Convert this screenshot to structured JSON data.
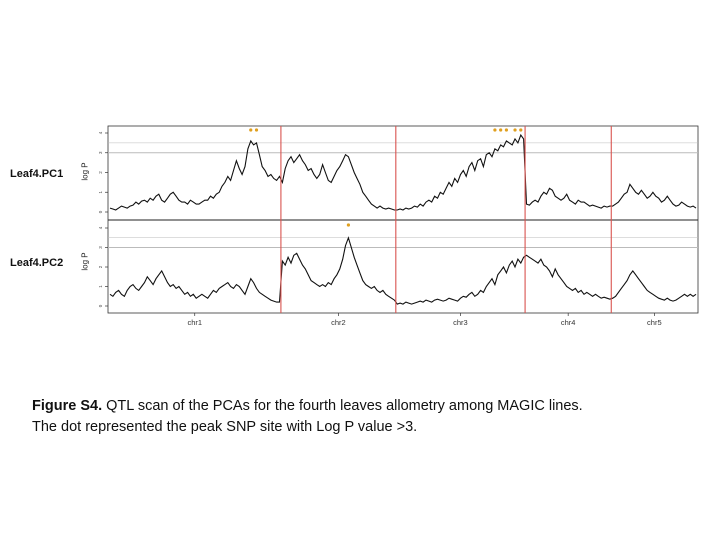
{
  "chart_data": {
    "type": "line",
    "panels": [
      {
        "label": "Leaf4.PC1",
        "ylabel": "log P",
        "yticks": [
          "0",
          "1",
          "2",
          "3",
          "4"
        ],
        "ylim": [
          0,
          4
        ],
        "threshold": 3,
        "peaks_marked": true
      },
      {
        "label": "Leaf4.PC2",
        "ylabel": "log P",
        "yticks": [
          "0",
          "1",
          "2",
          "3",
          "4"
        ],
        "ylim": [
          0,
          4
        ],
        "threshold": 3,
        "peaks_marked": true
      }
    ],
    "chromosomes": [
      "chr1",
      "chr2",
      "chr3",
      "chr4",
      "chr5"
    ],
    "series": [
      {
        "values": [
          0.2,
          0.15,
          0.1,
          0.2,
          0.3,
          0.25,
          0.2,
          0.3,
          0.35,
          0.5,
          0.4,
          0.55,
          0.6,
          0.5,
          0.7,
          0.6,
          0.8,
          0.9,
          0.6,
          0.5,
          0.7,
          0.9,
          1.0,
          0.8,
          0.6,
          0.5,
          0.5,
          0.4,
          0.6,
          0.5,
          0.4,
          0.4,
          0.5,
          0.6,
          0.6,
          0.8,
          0.7,
          0.9,
          1.0,
          1.3,
          1.5,
          1.8,
          1.6,
          2.1,
          2.6,
          2.2,
          1.9,
          2.3,
          3.2,
          3.6,
          3.4,
          3.5,
          2.9,
          2.3,
          2.1,
          1.8,
          1.9,
          1.7,
          1.6,
          1.8,
          1.5,
          2.2,
          2.6,
          2.8,
          2.5,
          2.7,
          2.9,
          2.6,
          2.4,
          2.1,
          2.2,
          1.9,
          1.7,
          1.9,
          2.4,
          2.0,
          1.6,
          1.5,
          1.8,
          2.1,
          2.3,
          2.6,
          2.9,
          2.8,
          2.4,
          2.0,
          1.7,
          1.4,
          1.0,
          0.8,
          0.6,
          0.4,
          0.3,
          0.2,
          0.3,
          0.2,
          0.15,
          0.2,
          0.15,
          0.1,
          0.1,
          0.15,
          0.1,
          0.2,
          0.15,
          0.2,
          0.3,
          0.25,
          0.4,
          0.3,
          0.5,
          0.6,
          0.5,
          0.8,
          0.7,
          1.0,
          0.9,
          1.2,
          1.5,
          1.3,
          1.7,
          1.5,
          1.9,
          2.1,
          1.8,
          2.3,
          2.5,
          2.1,
          2.6,
          2.7,
          2.3,
          2.9,
          3.0,
          2.8,
          3.2,
          3.1,
          3.4,
          3.3,
          3.6,
          3.5,
          3.4,
          3.7,
          3.5,
          3.9,
          3.7,
          0.4,
          0.35,
          0.5,
          0.6,
          0.5,
          0.8,
          1.0,
          0.9,
          1.2,
          1.1,
          0.8,
          0.7,
          0.6,
          0.7,
          0.9,
          0.6,
          0.5,
          0.4,
          0.6,
          0.5,
          0.5,
          0.4,
          0.3,
          0.35,
          0.3,
          0.25,
          0.2,
          0.3,
          0.25,
          0.3,
          0.3,
          0.4,
          0.5,
          0.7,
          0.9,
          1.0,
          1.4,
          1.2,
          1.0,
          0.9,
          1.1,
          0.9,
          0.7,
          0.8,
          1.0,
          0.8,
          0.7,
          0.5,
          0.6,
          0.8,
          0.6,
          0.4,
          0.3,
          0.35,
          0.5,
          0.4,
          0.3,
          0.25,
          0.3,
          0.2
        ]
      },
      {
        "values": [
          0.6,
          0.5,
          0.7,
          0.8,
          0.6,
          0.5,
          0.8,
          1.0,
          1.1,
          0.9,
          0.8,
          1.0,
          1.2,
          1.5,
          1.3,
          1.1,
          1.4,
          1.6,
          1.8,
          1.5,
          1.2,
          1.0,
          1.1,
          0.9,
          1.0,
          0.8,
          0.6,
          0.7,
          0.5,
          0.6,
          0.4,
          0.5,
          0.6,
          0.5,
          0.4,
          0.6,
          0.8,
          0.7,
          0.9,
          1.0,
          1.1,
          1.2,
          1.0,
          0.9,
          1.1,
          1.0,
          0.8,
          0.6,
          1.0,
          1.4,
          1.2,
          0.9,
          0.7,
          0.6,
          0.5,
          0.4,
          0.3,
          0.25,
          0.2,
          0.2,
          2.3,
          2.1,
          2.5,
          2.2,
          2.6,
          2.7,
          2.4,
          2.1,
          1.9,
          1.6,
          1.3,
          1.2,
          1.1,
          1.0,
          1.1,
          1.0,
          1.2,
          1.1,
          1.4,
          1.6,
          1.9,
          2.4,
          3.1,
          3.5,
          3.0,
          2.5,
          2.1,
          1.7,
          1.3,
          1.1,
          1.0,
          0.9,
          1.0,
          0.8,
          0.7,
          0.8,
          0.6,
          0.5,
          0.4,
          0.3,
          0.1,
          0.15,
          0.1,
          0.2,
          0.15,
          0.1,
          0.15,
          0.2,
          0.25,
          0.2,
          0.3,
          0.25,
          0.2,
          0.3,
          0.35,
          0.3,
          0.25,
          0.3,
          0.4,
          0.35,
          0.3,
          0.25,
          0.4,
          0.5,
          0.45,
          0.6,
          0.7,
          0.5,
          0.6,
          0.8,
          0.7,
          1.0,
          1.2,
          1.4,
          1.1,
          1.6,
          1.8,
          2.0,
          1.7,
          2.1,
          2.3,
          2.0,
          2.4,
          2.2,
          2.5,
          2.6,
          2.5,
          2.4,
          2.3,
          2.2,
          2.4,
          2.1,
          2.0,
          1.8,
          1.5,
          1.9,
          1.6,
          1.4,
          1.2,
          1.0,
          0.9,
          0.8,
          0.9,
          0.7,
          0.8,
          0.6,
          0.7,
          0.6,
          0.5,
          0.6,
          0.5,
          0.4,
          0.45,
          0.4,
          0.35,
          0.4,
          0.5,
          0.7,
          0.9,
          1.1,
          1.3,
          1.6,
          1.8,
          1.6,
          1.4,
          1.2,
          1.0,
          0.8,
          0.7,
          0.6,
          0.5,
          0.4,
          0.35,
          0.3,
          0.4,
          0.3,
          0.25,
          0.3,
          0.4,
          0.5,
          0.6,
          0.5,
          0.6,
          0.5,
          0.6
        ]
      }
    ],
    "points_per_chr": [
      60,
      40,
      45,
      30,
      30
    ],
    "colors": {
      "line": "#111111",
      "chr_sep": "#d9534f",
      "threshold": "#bbbbbb",
      "peak_dot": "#e0a020"
    }
  },
  "caption": {
    "bold": "Figure S4.",
    "line1": " QTL scan of the PCAs for the fourth leaves allometry among MAGIC lines.",
    "line2": "The dot represented the peak SNP site with Log P value >3."
  }
}
